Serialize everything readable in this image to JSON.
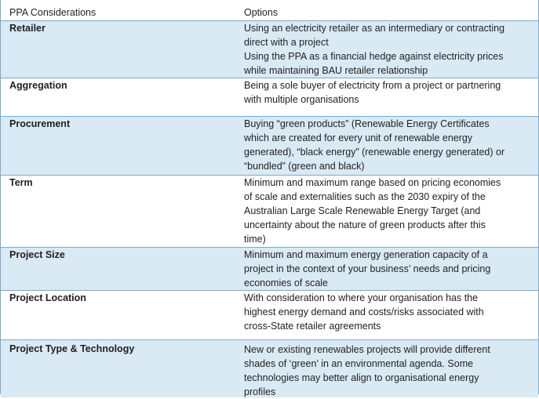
{
  "header": {
    "col1": "PPA Considerations",
    "col2": "Options"
  },
  "rows": [
    {
      "label": "Retailer",
      "lines": [
        "Using an electricity retailer as an intermediary or contracting",
        "direct with a project",
        "Using the PPA as a financial hedge against electricity prices",
        "while maintaining BAU retailer relationship"
      ]
    },
    {
      "label": "Aggregation",
      "lines": [
        "Being a sole buyer of electricity from a project or partnering",
        "with multiple organisations"
      ]
    },
    {
      "label": "Procurement",
      "lines": [
        "Buying “green products” (Renewable Energy Certificates",
        "which are created for every unit of renewable energy",
        "generated), “black energy” (renewable energy generated) or",
        "“bundled” (green and black)"
      ]
    },
    {
      "label": "Term",
      "lines": [
        "Minimum and maximum range based on pricing economies",
        "of scale and externalities such as the 2030  expiry of the",
        "Australian Large Scale Renewable Energy Target (and",
        "uncertainty about the nature of green products after this",
        "time)"
      ]
    },
    {
      "label": "Project Size",
      "lines": [
        "Minimum and maximum energy generation capacity of a",
        "project in the context of your business’ needs and pricing",
        "economies of scale"
      ]
    },
    {
      "label": "Project Location",
      "lines": [
        "With consideration to where your organisation has the",
        "highest energy demand and costs/risks associated with",
        "cross-State retailer agreements"
      ]
    },
    {
      "label": "Project Type & Technology",
      "lines": [
        "New or existing renewables projects will provide different",
        "shades of ‘green’ in an environmental agenda.  Some",
        "technologies may better align to organisational energy",
        "profiles"
      ]
    }
  ],
  "colors": {
    "row_blue": "#d9eaf4",
    "row_white": "#ffffff",
    "border": "#7fa8c9"
  }
}
